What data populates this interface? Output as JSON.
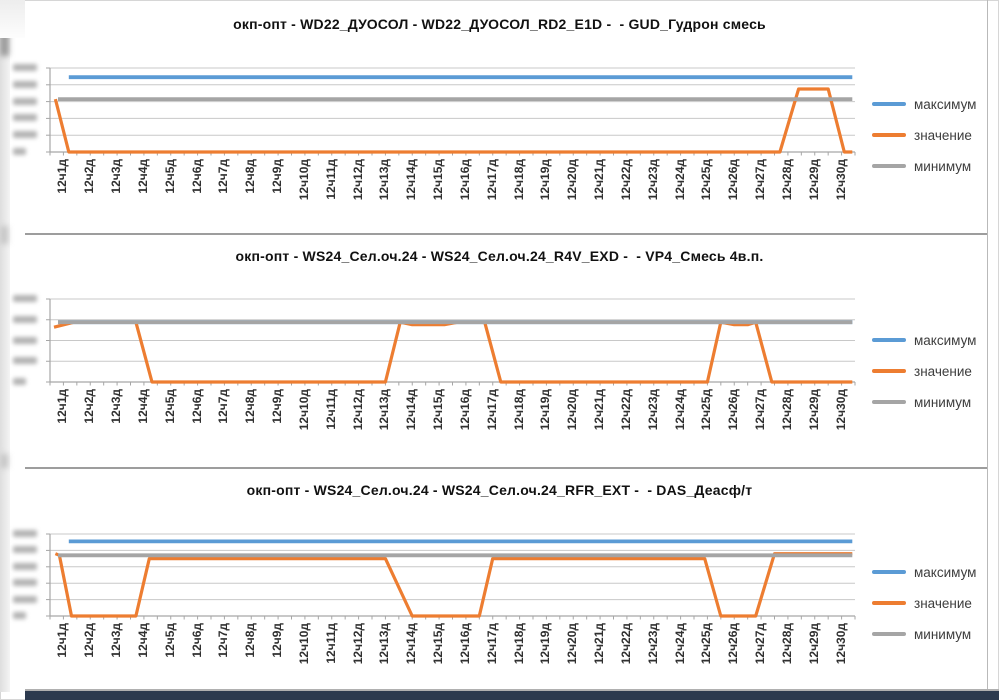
{
  "app": {
    "context": "spreadsheet area with three embedded line charts",
    "y_axis_note": "y-axis tick labels are blurred/illegible in the source screenshot",
    "bottom_edge_bar_color": "#2c3a4e"
  },
  "colors": {
    "maximum_line": "#5B9BD5",
    "value_line": "#ED7D31",
    "minimum_line": "#A5A5A5",
    "gridline": "#c8c8c8",
    "axis": "#a6a6a6",
    "divider": "#9d9d9d",
    "title_text": "#111111",
    "label_text": "#303030"
  },
  "legend": {
    "position": "right",
    "items": [
      {
        "label": "максимум",
        "color": "#5B9BD5"
      },
      {
        "label": "значение",
        "color": "#ED7D31"
      },
      {
        "label": "минимум",
        "color": "#A5A5A5"
      }
    ]
  },
  "chart_data": [
    {
      "type": "line",
      "title": "окп-опт - WD22_ДУОСОЛ - WD22_ДУОСОЛ_RD2_E1D -  - GUD_Гудрон смесь",
      "categories": [
        "12ч1д",
        "12ч2д",
        "12ч3д",
        "12ч4д",
        "12ч5д",
        "12ч6д",
        "12ч7д",
        "12ч8д",
        "12ч9д",
        "12ч10д",
        "12ч11д",
        "12ч12д",
        "12ч13д",
        "12ч14д",
        "12ч15д",
        "12ч16д",
        "12ч17д",
        "12ч18д",
        "12ч19д",
        "12ч20д",
        "12ч21д",
        "12ч22д",
        "12ч23д",
        "12ч24д",
        "12ч25д",
        "12ч26д",
        "12ч27д",
        "12ч28д",
        "12ч29д",
        "12ч30д"
      ],
      "units": "percent of plot height (0 = bottom gridline, 100 = top gridline); numeric y tick labels blurred in source",
      "y_gridlines": [
        0,
        20,
        40,
        60,
        80,
        100
      ],
      "legend_position": "right",
      "grid": "horizontal",
      "series": [
        {
          "name": "максимум",
          "color": "#5B9BD5",
          "values": [
            89,
            89,
            89,
            89,
            89,
            89,
            89,
            89,
            89,
            89,
            89,
            89,
            89,
            89,
            89,
            89,
            89,
            89,
            89,
            89,
            89,
            89,
            89,
            89,
            89,
            89,
            89,
            89,
            89,
            89
          ],
          "points": [
            [
              0.7,
              89
            ],
            [
              29.9,
              89
            ]
          ]
        },
        {
          "name": "значение",
          "color": "#ED7D31",
          "values": [
            0,
            0,
            0,
            0,
            0,
            0,
            0,
            0,
            0,
            0,
            0,
            0,
            0,
            0,
            0,
            0,
            0,
            0,
            0,
            0,
            0,
            0,
            0,
            0,
            0,
            0,
            0,
            75,
            75,
            0
          ],
          "points": [
            [
              0.2,
              63
            ],
            [
              0.7,
              0
            ],
            [
              27.2,
              0
            ],
            [
              27.9,
              75
            ],
            [
              29.0,
              75
            ],
            [
              29.6,
              0
            ],
            [
              29.9,
              0
            ]
          ]
        },
        {
          "name": "минимум",
          "color": "#A5A5A5",
          "values": [
            63,
            63,
            63,
            63,
            63,
            63,
            63,
            63,
            63,
            63,
            63,
            63,
            63,
            63,
            63,
            63,
            63,
            63,
            63,
            63,
            63,
            63,
            63,
            63,
            63,
            63,
            63,
            63,
            63,
            63
          ],
          "points": [
            [
              0.3,
              63
            ],
            [
              29.9,
              63
            ]
          ]
        }
      ]
    },
    {
      "type": "line",
      "title": "окп-опт - WS24_Сел.оч.24 - WS24_Сел.оч.24_R4V_EXD -  - VP4_Смесь 4в.п.",
      "categories": [
        "12ч1д",
        "12ч2д",
        "12ч3д",
        "12ч4д",
        "12ч5д",
        "12ч6д",
        "12ч7д",
        "12ч8д",
        "12ч9д",
        "12ч10д",
        "12ч11д",
        "12ч12д",
        "12ч13д",
        "12ч14д",
        "12ч15д",
        "12ч16д",
        "12ч17д",
        "12ч18д",
        "12ч19д",
        "12ч20д",
        "12ч21д",
        "12ч22д",
        "12ч23д",
        "12ч24д",
        "12ч25д",
        "12ч26д",
        "12ч27д",
        "12ч28д",
        "12ч29д",
        "12ч30д"
      ],
      "units": "percent of plot height (0 = bottom gridline, 100 = top gridline); numeric y tick labels blurred in source",
      "y_gridlines": [
        0,
        25,
        50,
        75,
        100
      ],
      "legend_position": "right",
      "grid": "horizontal",
      "series": [
        {
          "name": "максимум",
          "color": "#5B9BD5",
          "values": [
            72,
            72,
            72,
            72,
            72,
            72,
            72,
            72,
            72,
            72,
            72,
            72,
            72,
            72,
            72,
            72,
            72,
            72,
            72,
            72,
            72,
            72,
            72,
            72,
            72,
            72,
            72,
            72,
            72,
            72
          ],
          "points": [
            [
              0.3,
              72
            ],
            [
              29.9,
              72
            ]
          ]
        },
        {
          "name": "значение",
          "color": "#ED7D31",
          "values": [
            72,
            72,
            72,
            0,
            0,
            0,
            0,
            0,
            0,
            0,
            0,
            0,
            72,
            70,
            70,
            72,
            0,
            0,
            0,
            0,
            0,
            0,
            0,
            0,
            72,
            70,
            0,
            0,
            0,
            0
          ],
          "points": [
            [
              0.15,
              66
            ],
            [
              0.9,
              72
            ],
            [
              3.2,
              72
            ],
            [
              3.8,
              0
            ],
            [
              12.5,
              0
            ],
            [
              13.05,
              72
            ],
            [
              13.5,
              69
            ],
            [
              14.7,
              69
            ],
            [
              15.2,
              72
            ],
            [
              16.2,
              72
            ],
            [
              16.8,
              0
            ],
            [
              24.5,
              0
            ],
            [
              25.0,
              72
            ],
            [
              25.5,
              69
            ],
            [
              26.0,
              69
            ],
            [
              26.3,
              72
            ],
            [
              26.9,
              0
            ],
            [
              29.9,
              0
            ]
          ]
        },
        {
          "name": "минимум",
          "color": "#A5A5A5",
          "values": [
            72,
            72,
            72,
            72,
            72,
            72,
            72,
            72,
            72,
            72,
            72,
            72,
            72,
            72,
            72,
            72,
            72,
            72,
            72,
            72,
            72,
            72,
            72,
            72,
            72,
            72,
            72,
            72,
            72,
            72
          ],
          "points": [
            [
              0.3,
              72
            ],
            [
              29.9,
              72
            ]
          ]
        }
      ]
    },
    {
      "type": "line",
      "title": "окп-опт - WS24_Сел.оч.24 - WS24_Сел.оч.24_RFR_EXT -  - DAS_Деасф/т",
      "categories": [
        "12ч1д",
        "12ч2д",
        "12ч3д",
        "12ч4д",
        "12ч5д",
        "12ч6д",
        "12ч7д",
        "12ч8д",
        "12ч9д",
        "12ч10д",
        "12ч11д",
        "12ч12д",
        "12ч13д",
        "12ч14д",
        "12ч15д",
        "12ч16д",
        "12ч17д",
        "12ч18д",
        "12ч19д",
        "12ч20д",
        "12ч21д",
        "12ч22д",
        "12ч23д",
        "12ч24д",
        "12ч25д",
        "12ч26д",
        "12ч27д",
        "12ч28д",
        "12ч29д",
        "12ч30д"
      ],
      "units": "percent of plot height (0 = bottom gridline, 100 = top gridline); numeric y tick labels blurred in source",
      "y_gridlines": [
        0,
        20,
        40,
        60,
        80,
        100
      ],
      "legend_position": "right",
      "grid": "horizontal",
      "series": [
        {
          "name": "максимум",
          "color": "#5B9BD5",
          "values": [
            91,
            91,
            91,
            91,
            91,
            91,
            91,
            91,
            91,
            91,
            91,
            91,
            91,
            91,
            91,
            91,
            91,
            91,
            91,
            91,
            91,
            91,
            91,
            91,
            91,
            91,
            91,
            91,
            91,
            91
          ],
          "points": [
            [
              0.7,
              91
            ],
            [
              29.9,
              91
            ]
          ]
        },
        {
          "name": "значение",
          "color": "#ED7D31",
          "values": [
            0,
            0,
            0,
            70,
            70,
            70,
            70,
            70,
            70,
            70,
            70,
            70,
            70,
            0,
            0,
            0,
            70,
            70,
            70,
            70,
            70,
            70,
            70,
            70,
            0,
            0,
            76,
            76,
            76,
            76
          ],
          "points": [
            [
              0.2,
              76
            ],
            [
              0.35,
              74
            ],
            [
              0.8,
              0
            ],
            [
              3.2,
              0
            ],
            [
              3.7,
              70
            ],
            [
              12.5,
              70
            ],
            [
              13.5,
              0
            ],
            [
              16.0,
              0
            ],
            [
              16.5,
              70
            ],
            [
              24.4,
              70
            ],
            [
              25.0,
              0
            ],
            [
              26.3,
              0
            ],
            [
              27.0,
              76
            ],
            [
              29.9,
              76
            ]
          ]
        },
        {
          "name": "минимум",
          "color": "#A5A5A5",
          "values": [
            74,
            74,
            74,
            74,
            74,
            74,
            74,
            74,
            74,
            74,
            74,
            74,
            74,
            74,
            74,
            74,
            74,
            74,
            74,
            74,
            74,
            74,
            74,
            74,
            74,
            74,
            74,
            74,
            74,
            74
          ],
          "points": [
            [
              0.3,
              74
            ],
            [
              29.9,
              74
            ]
          ]
        }
      ]
    }
  ]
}
